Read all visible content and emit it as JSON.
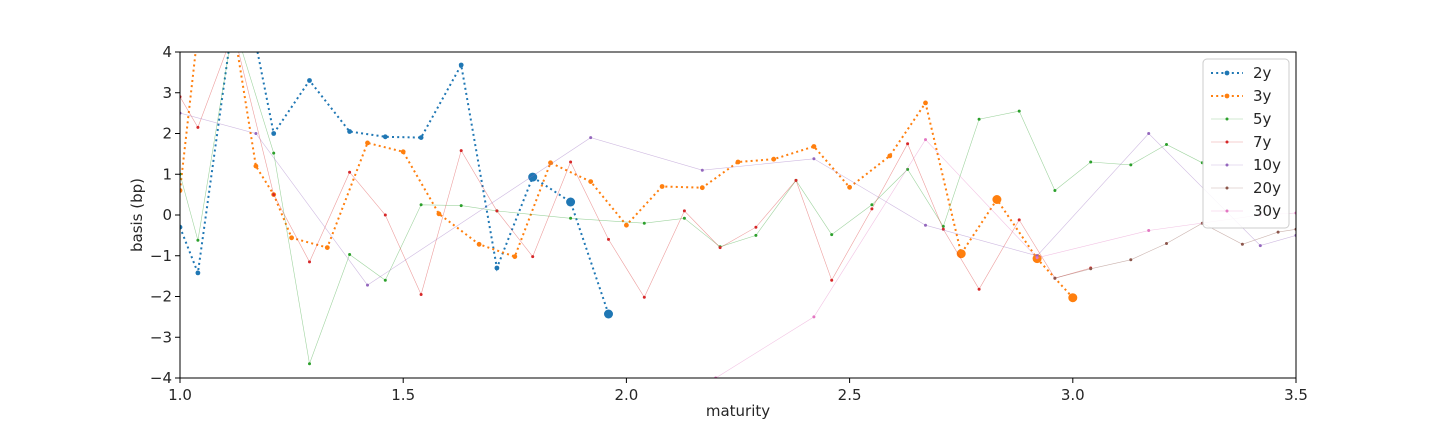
{
  "chart_data": {
    "type": "line",
    "title": "",
    "xlabel": "maturity",
    "ylabel": "basis (bp)",
    "xlim": [
      1.0,
      3.5
    ],
    "ylim": [
      -4,
      4
    ],
    "xticks": [
      "1.0",
      "1.5",
      "2.0",
      "2.5",
      "3.0",
      "3.5"
    ],
    "yticks": [
      "−4",
      "−3",
      "−2",
      "−1",
      "0",
      "1",
      "2",
      "3",
      "4"
    ],
    "grid": false,
    "legend_position": "top-right",
    "series": [
      {
        "name": "2y",
        "color": "#1f77b4",
        "style": "dotted-thick",
        "x": [
          1.0,
          1.04,
          1.12,
          1.17,
          1.21,
          1.29,
          1.38,
          1.46,
          1.54,
          1.63,
          1.71,
          1.79,
          1.875,
          1.96
        ],
        "y": [
          -0.3,
          -1.42,
          4.9,
          4.2,
          2.0,
          3.3,
          2.05,
          1.92,
          1.9,
          3.68,
          -1.3,
          0.93,
          0.32,
          -2.43
        ],
        "large_from": 11
      },
      {
        "name": "3y",
        "color": "#ff7f0e",
        "style": "dotted-thick",
        "x": [
          1.0,
          1.04,
          1.12,
          1.17,
          1.21,
          1.25,
          1.33,
          1.42,
          1.5,
          1.58,
          1.67,
          1.75,
          1.83,
          1.92,
          2.0,
          2.08,
          2.17,
          2.25,
          2.33,
          2.42,
          2.5,
          2.59,
          2.67,
          2.75,
          2.83,
          2.92,
          3.0
        ],
        "y": [
          0.6,
          4.5,
          4.6,
          1.2,
          0.5,
          -0.56,
          -0.8,
          1.77,
          1.55,
          0.03,
          -0.72,
          -1.02,
          1.28,
          0.82,
          -0.25,
          0.7,
          0.67,
          1.3,
          1.37,
          1.68,
          0.68,
          1.45,
          2.75,
          -0.95,
          0.38,
          -1.07,
          -2.03
        ],
        "large_from": 23
      },
      {
        "name": "5y",
        "color": "#2ca02c",
        "style": "thin",
        "x": [
          1.0,
          1.04,
          1.12,
          1.21,
          1.29,
          1.38,
          1.46,
          1.54,
          1.63,
          1.71,
          1.875,
          2.04,
          2.13,
          2.21,
          2.29,
          2.38,
          2.46,
          2.55,
          2.63,
          2.71,
          2.79,
          2.88,
          2.96,
          3.04,
          3.13,
          3.21,
          3.29
        ],
        "y": [
          1.0,
          -0.62,
          4.7,
          1.52,
          -3.65,
          -0.97,
          -1.6,
          0.25,
          0.23,
          0.1,
          -0.08,
          -0.2,
          -0.08,
          -0.78,
          -0.5,
          0.85,
          -0.48,
          0.25,
          1.12,
          -0.28,
          2.35,
          2.55,
          0.6,
          1.3,
          1.23,
          1.73,
          1.28
        ]
      },
      {
        "name": "7y",
        "color": "#d62728",
        "style": "thin",
        "x": [
          1.0,
          1.04,
          1.12,
          1.21,
          1.29,
          1.38,
          1.46,
          1.54,
          1.63,
          1.71,
          1.79,
          1.875,
          1.96,
          2.04,
          2.13,
          2.21,
          2.29,
          2.38,
          2.46,
          2.55,
          2.63,
          2.71,
          2.79,
          2.88,
          2.96,
          3.04
        ],
        "y": [
          2.9,
          2.15,
          4.5,
          0.5,
          -1.15,
          1.05,
          0.0,
          -1.95,
          1.58,
          0.1,
          -1.02,
          1.3,
          -0.6,
          -2.02,
          0.1,
          -0.8,
          -0.3,
          0.85,
          -1.6,
          0.15,
          1.75,
          -0.35,
          -1.82,
          -0.12,
          -1.55,
          -1.3
        ]
      },
      {
        "name": "10y",
        "color": "#9467bd",
        "style": "thin",
        "x": [
          1.0,
          1.17,
          1.42,
          1.92,
          2.17,
          2.42,
          2.67,
          2.92,
          3.17,
          3.42,
          3.5
        ],
        "y": [
          2.5,
          2.0,
          -1.72,
          1.9,
          1.1,
          1.38,
          -0.25,
          -1.0,
          2.0,
          -0.75,
          -0.5
        ]
      },
      {
        "name": "20y",
        "color": "#8c564b",
        "style": "thin",
        "x": [
          2.96,
          3.04,
          3.13,
          3.21,
          3.29,
          3.38,
          3.46,
          3.5
        ],
        "y": [
          -1.55,
          -1.32,
          -1.1,
          -0.7,
          -0.2,
          -0.72,
          -0.42,
          -0.35
        ]
      },
      {
        "name": "30y",
        "color": "#e377c2",
        "style": "thin",
        "x": [
          2.2,
          2.42,
          2.67,
          2.92,
          3.17,
          3.42,
          3.5
        ],
        "y": [
          -4.0,
          -2.5,
          1.85,
          -1.05,
          -0.38,
          0.0,
          0.05
        ]
      }
    ]
  }
}
